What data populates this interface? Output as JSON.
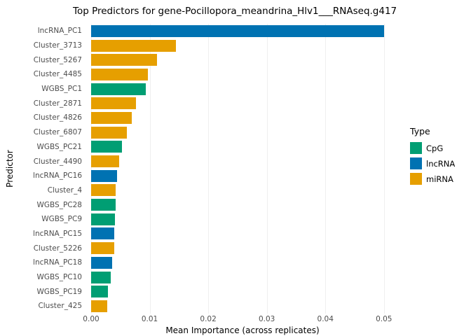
{
  "title": "Top Predictors for gene-Pocillopora_meandrina_Hlv1___RNAseq.g417",
  "axes": {
    "x_label": "Mean Importance (across replicates)",
    "y_label": "Predictor"
  },
  "legend": {
    "title": "Type",
    "entries": [
      {
        "label": "CpG",
        "color": "#009E73"
      },
      {
        "label": "lncRNA",
        "color": "#0072B2"
      },
      {
        "label": "miRNA",
        "color": "#E69F00"
      }
    ]
  },
  "chart_data": {
    "type": "bar",
    "orientation": "horizontal",
    "title": "Top Predictors for gene-Pocillopora_meandrina_Hlv1___RNAseq.g417",
    "xlabel": "Mean Importance (across replicates)",
    "ylabel": "Predictor",
    "xlim": [
      0,
      0.0517
    ],
    "x_ticks": [
      0.0,
      0.01,
      0.02,
      0.03,
      0.04,
      0.05
    ],
    "x_tick_labels": [
      "0.00",
      "0.01",
      "0.02",
      "0.03",
      "0.04",
      "0.05"
    ],
    "grid": true,
    "legend_position": "right",
    "color_map": {
      "CpG": "#009E73",
      "lncRNA": "#0072B2",
      "miRNA": "#E69F00"
    },
    "categories": [
      "lncRNA_PC1",
      "Cluster_3713",
      "Cluster_5267",
      "Cluster_4485",
      "WGBS_PC1",
      "Cluster_2871",
      "Cluster_4826",
      "Cluster_6807",
      "WGBS_PC21",
      "Cluster_4490",
      "lncRNA_PC16",
      "Cluster_4",
      "WGBS_PC28",
      "WGBS_PC9",
      "lncRNA_PC15",
      "Cluster_5226",
      "lncRNA_PC18",
      "WGBS_PC10",
      "WGBS_PC19",
      "Cluster_425"
    ],
    "types": [
      "lncRNA",
      "miRNA",
      "miRNA",
      "miRNA",
      "CpG",
      "miRNA",
      "miRNA",
      "miRNA",
      "CpG",
      "miRNA",
      "lncRNA",
      "miRNA",
      "CpG",
      "CpG",
      "lncRNA",
      "miRNA",
      "lncRNA",
      "CpG",
      "CpG",
      "miRNA"
    ],
    "values": [
      0.05,
      0.0145,
      0.0112,
      0.0097,
      0.0093,
      0.0076,
      0.007,
      0.0061,
      0.0053,
      0.0048,
      0.0044,
      0.0042,
      0.0042,
      0.0041,
      0.004,
      0.0039,
      0.0036,
      0.0033,
      0.0029,
      0.0028
    ]
  }
}
